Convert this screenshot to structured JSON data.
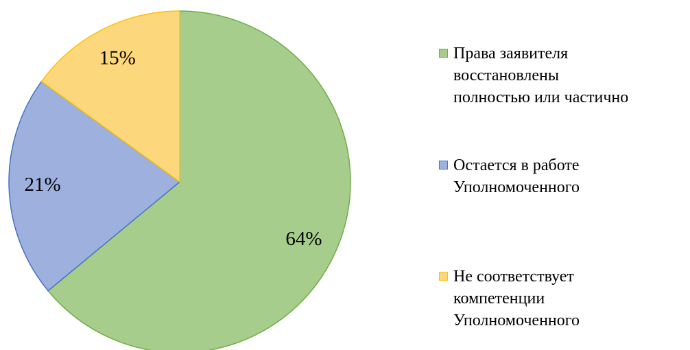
{
  "chart_data": {
    "type": "pie",
    "series": [
      {
        "name": "Права заявителя\nвосстановлены\nполностью или частично",
        "color": "#a6cd8c",
        "stroke": "#70ad47",
        "values": [
          64
        ],
        "value_labels": [
          "64%"
        ]
      },
      {
        "name": "Остается в работе\nУполномоченного",
        "color": "#9db0de",
        "stroke": "#4472c4",
        "values": [
          21
        ],
        "value_labels": [
          "21%"
        ]
      },
      {
        "name": "Не соответствует\nкомпетенции\nУполномоченного",
        "color": "#fdd77c",
        "stroke": "#ffc000",
        "values": [
          15
        ],
        "value_labels": [
          "15%"
        ]
      }
    ],
    "legend": "right"
  }
}
